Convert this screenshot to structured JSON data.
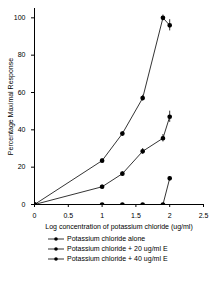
{
  "chart_data": {
    "type": "line",
    "x_label": "Log concentration of potassium chloride (ug/ml)",
    "y_label": "Percentage Maximal Response",
    "x": [
      0,
      1,
      1.3,
      1.6,
      1.9,
      2
    ],
    "series": [
      {
        "name": "Potassium chloride alone",
        "color": "#000000",
        "marker": "circle",
        "values": [
          0,
          23.5,
          38,
          57,
          100,
          96
        ],
        "errors": [
          null,
          1,
          1,
          1.5,
          1.5,
          3
        ]
      },
      {
        "name": "Potassium chloride + 20 ug/ml E",
        "color": "#000000",
        "marker": "circle",
        "values": [
          0,
          9.5,
          16.5,
          28.5,
          35.5,
          47
        ],
        "errors": [
          null,
          1,
          1,
          1.5,
          2,
          3
        ]
      },
      {
        "name": "Potassium chloride + 40 ug/ml E",
        "color": "#000000",
        "marker": "circle",
        "values": [
          0,
          0,
          0,
          0,
          0,
          14
        ],
        "errors": [
          null,
          null,
          null,
          null,
          null,
          1
        ]
      }
    ],
    "xlim": [
      0,
      2.5
    ],
    "xticks": [
      0,
      0.5,
      1,
      1.5,
      2,
      2.5
    ],
    "ylim": [
      0,
      105
    ],
    "yticks": [
      0,
      20,
      40,
      60,
      80,
      100
    ],
    "legend": "bottom"
  }
}
